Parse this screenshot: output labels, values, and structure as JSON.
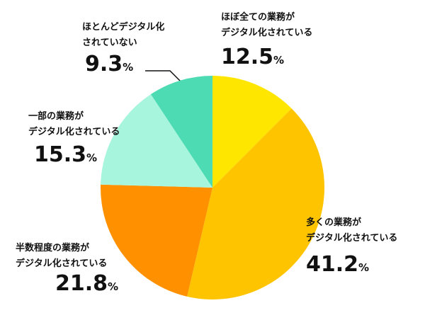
{
  "chart_data": {
    "type": "pie",
    "categories": [
      "ほぼ全ての業務が\nデジタル化されている",
      "多くの業務が\nデジタル化されている",
      "半数程度の業務が\nデジタル化されている",
      "一部の業務が\nデジタル化されている",
      "ほとんどデジタル化\nされていない"
    ],
    "values": [
      12.5,
      41.2,
      21.8,
      15.3,
      9.3
    ],
    "value_labels": [
      "12.5%",
      "41.2%",
      "21.8%",
      "15.3%",
      "9.3%"
    ],
    "colors": [
      "#ffe600",
      "#ffc400",
      "#ff9100",
      "#a8f5dd",
      "#4ddbb4"
    ]
  }
}
